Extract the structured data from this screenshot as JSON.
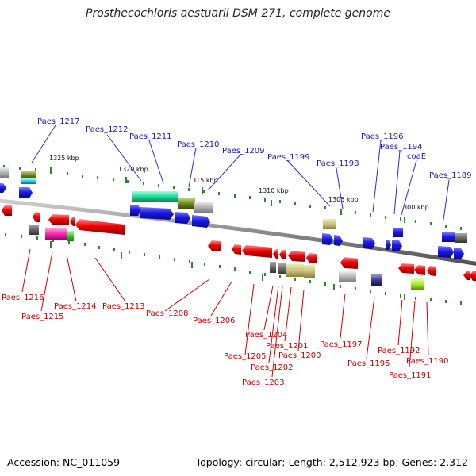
{
  "title": "Prosthecochloris aestuarii DSM 271, complete genome",
  "footer": {
    "accession": "Accession: NC_011059",
    "topology": "Topology: circular; Length: 2,512,923 bp; Genes: 2,312"
  },
  "scale_labels": [
    "1325 kbp",
    "1320 kbp",
    "1315 kbp",
    "1310 kbp",
    "1305 kbp",
    "1300 kbp"
  ],
  "top_gene_labels": [
    "Paes_1217",
    "Paes_1212",
    "Paes_1211",
    "Paes_1210",
    "Paes_1209",
    "Paes_1199",
    "Paes_1198",
    "Paes_1196",
    "Paes_1194",
    "coaE",
    "Paes_1189"
  ],
  "bottom_gene_labels": [
    "Paes_1216",
    "Paes_1215",
    "Paes_1214",
    "Paes_1213",
    "Paes_1208",
    "Paes_1206",
    "Paes_1204",
    "Paes_1205",
    "Paes_1201",
    "Paes_1202",
    "Paes_1200",
    "Paes_1203",
    "Paes_1197",
    "Paes_1195",
    "Paes_1192",
    "Paes_1191",
    "Paes_1190"
  ],
  "colors": {
    "forward_strand": "#1a1ae6",
    "reverse_strand": "#ee0000",
    "backbone": "#888888",
    "tick": "#2a8a2a"
  }
}
